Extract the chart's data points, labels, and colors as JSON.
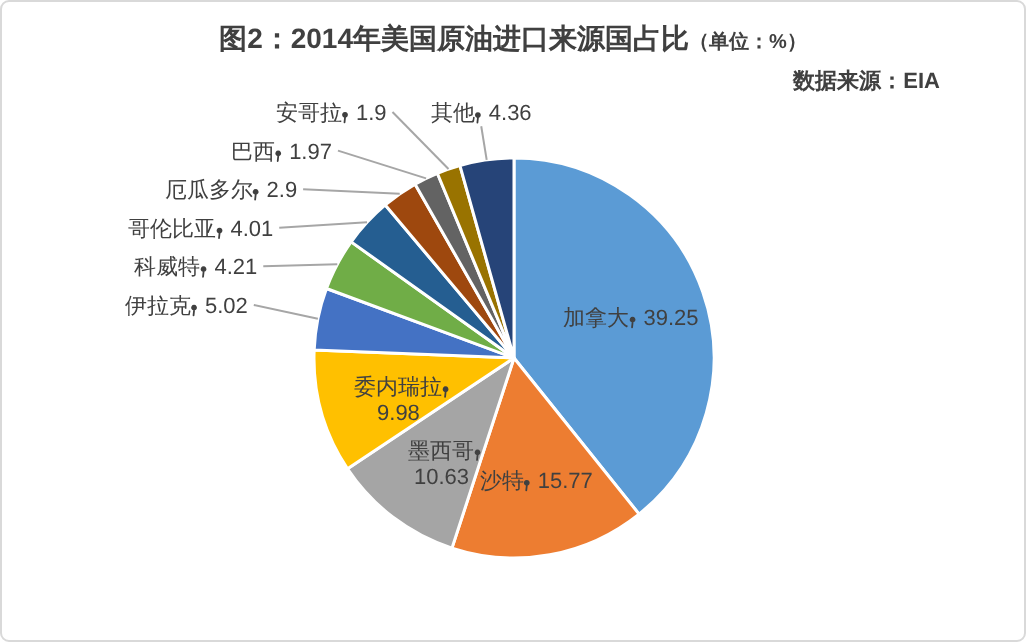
{
  "chart_data": {
    "type": "pie",
    "title": "图2：2014年美国原油进口来源国占比",
    "subtitle": "（单位：%）",
    "annotations": [
      "数据来源：EIA"
    ],
    "categories": [
      "加拿大",
      "沙特",
      "墨西哥",
      "委内瑞拉",
      "伊拉克",
      "科威特",
      "哥伦比亚",
      "厄瓜多尔",
      "巴西",
      "安哥拉",
      "其他"
    ],
    "values": [
      39.25,
      15.77,
      10.63,
      9.98,
      5.02,
      4.21,
      4.01,
      2.9,
      1.97,
      1.9,
      4.36
    ],
    "colors": [
      "#5b9bd5",
      "#ed7d31",
      "#a5a5a5",
      "#ffc000",
      "#4472c4",
      "#70ad47",
      "#255e91",
      "#9e480e",
      "#636363",
      "#997300",
      "#264478"
    ],
    "data_labels": true,
    "legend": false
  }
}
